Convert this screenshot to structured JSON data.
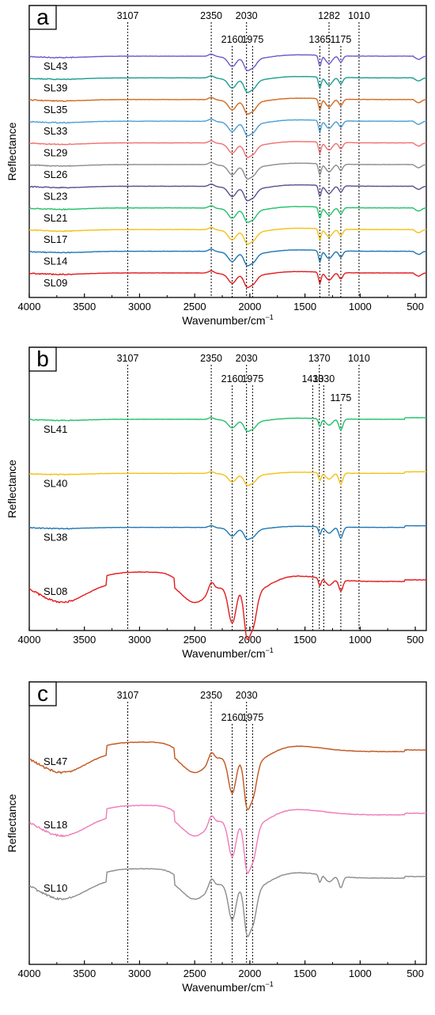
{
  "colors": {
    "axis": "#000000",
    "guide": "#000000"
  },
  "chart_data": [
    {
      "type": "line",
      "panel_label": "a",
      "xlabel": "Wavenumber/cm",
      "xlabel_sup": "−1",
      "ylabel": "Reflectance",
      "xlim": [
        4000,
        400
      ],
      "x_reversed": true,
      "x_ticks": [
        4000,
        3500,
        3000,
        2500,
        2000,
        1500,
        1000,
        500
      ],
      "x_tick_labels": [
        "4000",
        "3500",
        "3000",
        "2500",
        "2000",
        "1500",
        "1000",
        "500"
      ],
      "ylim": [
        -11,
        1
      ],
      "grid": false,
      "legend": "inline labels at left of each trace",
      "annotations": [
        {
          "x": 3107,
          "label": "3107",
          "row": 0
        },
        {
          "x": 2350,
          "label": "2350",
          "row": 0
        },
        {
          "x": 2030,
          "label": "2030",
          "row": 0
        },
        {
          "x": 2160,
          "label": "2160",
          "row": 1
        },
        {
          "x": 1975,
          "label": "1975",
          "row": 1
        },
        {
          "x": 1282,
          "label": "1282",
          "row": 0
        },
        {
          "x": 1010,
          "label": "1010",
          "row": 0
        },
        {
          "x": 1365,
          "label": "1365",
          "row": 1
        },
        {
          "x": 1175,
          "label": "1175",
          "row": 1
        }
      ],
      "series": [
        {
          "name": "SL43",
          "color": "#6a5acd",
          "offset": 0
        },
        {
          "name": "SL39",
          "color": "#1a9e8f",
          "offset": -1
        },
        {
          "name": "SL35",
          "color": "#d2691e",
          "offset": -2
        },
        {
          "name": "SL33",
          "color": "#4a9fd6",
          "offset": -3
        },
        {
          "name": "SL29",
          "color": "#f07070",
          "offset": -4
        },
        {
          "name": "SL26",
          "color": "#8c8c8c",
          "offset": -5
        },
        {
          "name": "SL23",
          "color": "#5b4e8f",
          "offset": -6
        },
        {
          "name": "SL21",
          "color": "#22c06a",
          "offset": -7
        },
        {
          "name": "SL17",
          "color": "#f5c016",
          "offset": -8
        },
        {
          "name": "SL14",
          "color": "#1f77b4",
          "offset": -9
        },
        {
          "name": "SL09",
          "color": "#e31a1c",
          "offset": -10
        }
      ]
    },
    {
      "type": "line",
      "panel_label": "b",
      "xlabel": "Wavenumber/cm",
      "xlabel_sup": "−1",
      "ylabel": "Reflectance",
      "xlim": [
        4000,
        400
      ],
      "x_reversed": true,
      "x_ticks": [
        4000,
        3500,
        3000,
        2500,
        2000,
        1500,
        1000,
        500
      ],
      "x_tick_labels": [
        "4000",
        "3500",
        "3000",
        "2500",
        "2000",
        "1500",
        "1000",
        "500"
      ],
      "ylim": [
        -5.6,
        1
      ],
      "grid": false,
      "legend": "inline labels at left of each trace",
      "annotations": [
        {
          "x": 3107,
          "label": "3107",
          "row": 0
        },
        {
          "x": 2350,
          "label": "2350",
          "row": 0
        },
        {
          "x": 2030,
          "label": "2030",
          "row": 0
        },
        {
          "x": 2160,
          "label": "2160",
          "row": 1
        },
        {
          "x": 1975,
          "label": "1975",
          "row": 1
        },
        {
          "x": 1370,
          "label": "1370",
          "row": 0
        },
        {
          "x": 1010,
          "label": "1010",
          "row": 0
        },
        {
          "x": 1430,
          "label": "1430",
          "row": 1
        },
        {
          "x": 1330,
          "label": "1330",
          "row": 1
        },
        {
          "x": 1175,
          "label": "1175",
          "row": 2
        }
      ],
      "series": [
        {
          "name": "SL41",
          "color": "#22c06a",
          "offset": 0
        },
        {
          "name": "SL40",
          "color": "#f5c016",
          "offset": -1.15
        },
        {
          "name": "SL38",
          "color": "#1f77b4",
          "offset": -2.3
        },
        {
          "name": "SL08",
          "color": "#e31a1c",
          "offset": -3.6
        }
      ]
    },
    {
      "type": "line",
      "panel_label": "c",
      "xlabel": "Wavenumber/cm",
      "xlabel_sup": "−1",
      "ylabel": "Reflectance",
      "xlim": [
        4000,
        400
      ],
      "x_reversed": true,
      "x_ticks": [
        4000,
        3500,
        3000,
        2500,
        2000,
        1500,
        1000,
        500
      ],
      "x_tick_labels": [
        "4000",
        "3500",
        "3000",
        "2500",
        "2000",
        "1500",
        "1000",
        "500"
      ],
      "ylim": [
        -4.2,
        1
      ],
      "grid": false,
      "legend": "inline labels at left of each trace",
      "annotations": [
        {
          "x": 3107,
          "label": "3107",
          "row": 0
        },
        {
          "x": 2350,
          "label": "2350",
          "row": 0
        },
        {
          "x": 2030,
          "label": "2030",
          "row": 0
        },
        {
          "x": 2160,
          "label": "2160",
          "row": 1
        },
        {
          "x": 1975,
          "label": "1975",
          "row": 1
        }
      ],
      "series": [
        {
          "name": "SL47",
          "color": "#c0551e",
          "offset": 0
        },
        {
          "name": "SL18",
          "color": "#f07ab8",
          "offset": -1.1
        },
        {
          "name": "SL10",
          "color": "#8c8c8c",
          "offset": -2.2
        }
      ]
    }
  ]
}
